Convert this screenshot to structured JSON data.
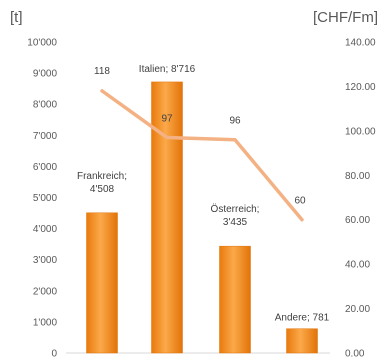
{
  "chart_data": {
    "type": "bar",
    "categories": [
      "Frankreich",
      "Italien",
      "Österreich",
      "Andere"
    ],
    "bar_series": {
      "values": [
        4508,
        8716,
        3435,
        781
      ],
      "labels": [
        "Frankreich;|4'508",
        "Italien; 8'716",
        "Österreich;|3'435",
        "Andere; 781"
      ],
      "color": "#F28E1E"
    },
    "line_series": {
      "values": [
        118,
        97,
        96,
        60
      ],
      "labels": [
        "118",
        "97",
        "96",
        "60"
      ],
      "color": "#F4B183"
    },
    "y_left": {
      "unit": "[t]",
      "min": 0,
      "max": 10000,
      "ticks": [
        0,
        1000,
        2000,
        3000,
        4000,
        5000,
        6000,
        7000,
        8000,
        9000,
        10000
      ],
      "tick_labels": [
        "0",
        "1'000",
        "2'000",
        "3'000",
        "4'000",
        "5'000",
        "6'000",
        "7'000",
        "8'000",
        "9'000",
        "10'000"
      ]
    },
    "y_right": {
      "unit": "[CHF/Fm]",
      "min": 0,
      "max": 140,
      "ticks": [
        0,
        20,
        40,
        60,
        80,
        100,
        120,
        140
      ],
      "tick_labels": [
        "0.00",
        "20.00",
        "40.00",
        "60.00",
        "80.00",
        "100.00",
        "120.00",
        "140.00"
      ]
    },
    "grid": false,
    "legend": false
  }
}
